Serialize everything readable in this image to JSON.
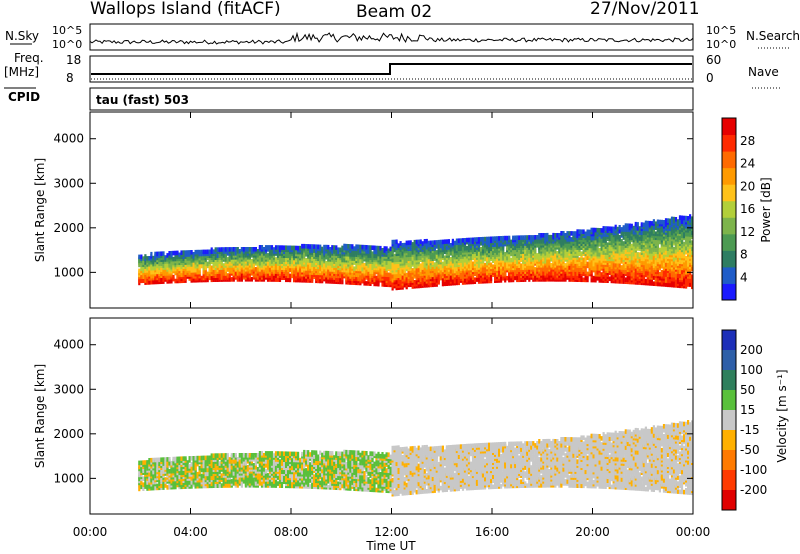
{
  "header": {
    "station": "Wallops Island (fitACF)",
    "beam": "Beam 02",
    "date": "27/Nov/2011"
  },
  "strip_labels": {
    "nsky": "N.Sky",
    "nsearch": "N.Search",
    "freq": "Freq.",
    "freq_unit": "[MHz]",
    "nave": "Nave",
    "cpid": "CPID",
    "program": "tau (fast) 503",
    "nsky_top": "10^5",
    "nsky_bottom": "10^0",
    "nsearch_top": "10^5",
    "nsearch_bottom": "10^0",
    "freq_top": "18",
    "freq_bottom": "8",
    "nave_top": "60",
    "nave_bottom": "0"
  },
  "chart_data": [
    {
      "type": "heatmap",
      "name": "power",
      "ylabel": "Slant Range [km]",
      "ylim": [
        200,
        4600
      ],
      "y_ticks": [
        1000,
        2000,
        3000,
        4000
      ],
      "colorbar": {
        "label": "Power [dB]",
        "range": [
          0,
          32
        ],
        "ticks": [
          "4",
          "8",
          "12",
          "16",
          "20",
          "24",
          "28"
        ],
        "colors": [
          "#1a1aff",
          "#1f5cc8",
          "#2e7d62",
          "#4c9a52",
          "#7db44b",
          "#b2cf3a",
          "#ffc21a",
          "#ff9a00",
          "#ff6a00",
          "#ff2a00",
          "#e60000"
        ]
      }
    },
    {
      "type": "heatmap",
      "name": "velocity",
      "ylabel": "Slant Range [km]",
      "xlabel": "Time UT",
      "ylim": [
        200,
        4600
      ],
      "y_ticks": [
        1000,
        2000,
        3000,
        4000
      ],
      "x_ticks": [
        "00:00",
        "04:00",
        "08:00",
        "12:00",
        "16:00",
        "20:00",
        "00:00"
      ],
      "colorbar": {
        "label": "Velocity [m s⁻¹]",
        "ticks": [
          "200",
          "100",
          "50",
          "15",
          "-15",
          "-50",
          "-100",
          "-200"
        ],
        "colors": [
          "#1c2fb8",
          "#2e5fa8",
          "#2f7f5c",
          "#59c03b",
          "#c8c8c8",
          "#ffb000",
          "#ff7a00",
          "#ff3a00",
          "#e00000"
        ]
      }
    }
  ]
}
